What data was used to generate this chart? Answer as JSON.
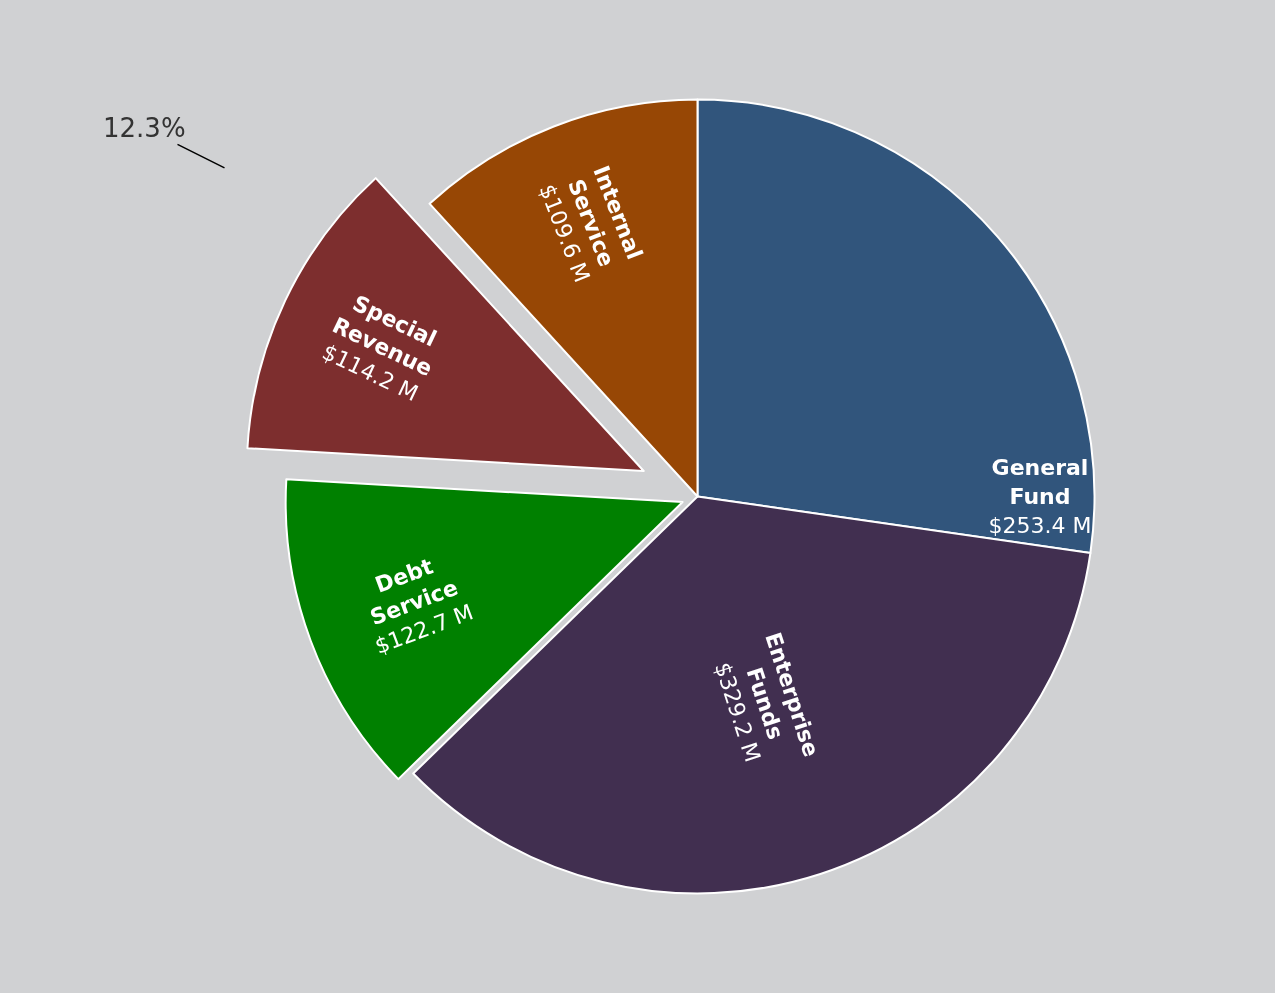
{
  "chart_data": {
    "type": "pie",
    "categories": [
      "General Fund",
      "Enterprise Funds",
      "Debt Service",
      "Special Revenue",
      "Internal Service"
    ],
    "values": [
      253.4,
      329.2,
      122.7,
      114.2,
      109.6
    ],
    "value_labels": [
      "$253.4 M",
      "$329.2 M",
      "$122.7 M",
      "$114.2 M",
      "$109.6 M"
    ],
    "colors": [
      "#31557c",
      "#412f50",
      "#008000",
      "#7d2e2e",
      "#974705"
    ],
    "annotations": [
      "12.3%"
    ],
    "legend": false
  }
}
